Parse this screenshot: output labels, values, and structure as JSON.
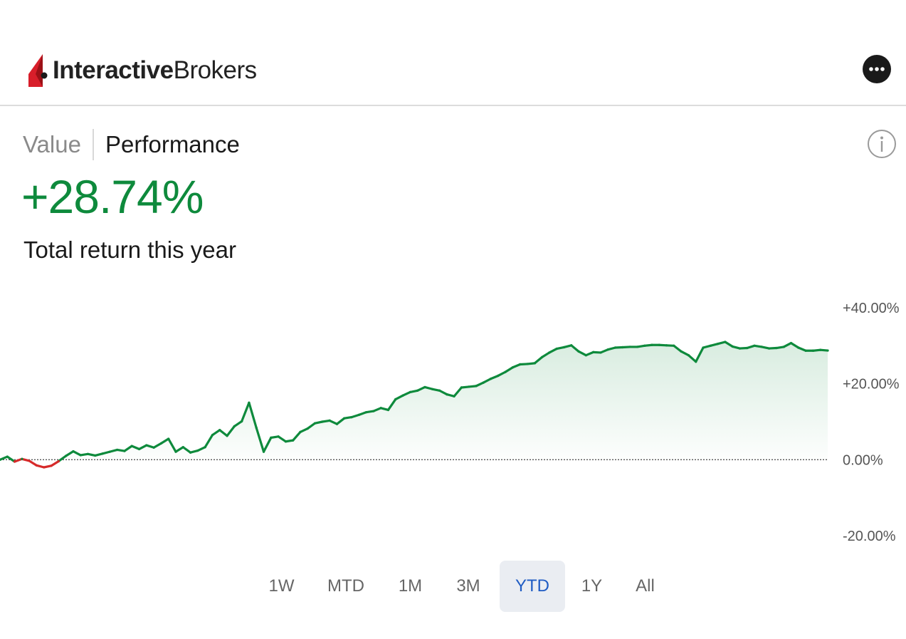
{
  "app": {
    "brand_bold": "Interactive",
    "brand_regular": "Brokers"
  },
  "header": {
    "more_icon": "more-horizontal-icon"
  },
  "tabs": [
    {
      "label": "Value",
      "active": false
    },
    {
      "label": "Performance",
      "active": true
    }
  ],
  "info_icon": "info-icon",
  "summary": {
    "value": "+28.74%",
    "label": "Total return this year"
  },
  "colors": {
    "positive": "#0e8a3c",
    "negative": "#d62a2a",
    "accent": "#1f5cc4",
    "brand": "#d81e2a"
  },
  "chart_data": {
    "type": "area",
    "x_unit": "trading day of year",
    "y_unit": "percent",
    "ylim": [
      -20,
      40
    ],
    "ytick_labels": [
      "+40.00%",
      "+20.00%",
      "0.00%",
      "-20.00%"
    ],
    "yticks": [
      40,
      20,
      0,
      -20
    ],
    "baseline": 0,
    "series": [
      {
        "values": [
          0,
          0.8,
          -0.5,
          0.2,
          -0.3,
          -1.5,
          -2,
          -1.6,
          -0.4,
          1,
          2.2,
          1.2,
          1.5,
          1.1,
          1.6,
          2.1,
          2.6,
          2.3,
          3.6,
          2.8,
          3.8,
          3.2,
          4.3,
          5.5,
          2.1,
          3.3,
          1.9,
          2.4,
          3.3,
          6.5,
          7.8,
          6.3,
          8.8,
          10.1,
          15,
          8.4,
          2.1,
          5.8,
          6.1,
          4.8,
          5.1,
          7.3,
          8.2,
          9.6,
          10,
          10.3,
          9.4,
          10.9,
          11.2,
          11.8,
          12.5,
          12.8,
          13.6,
          13.1,
          15.9,
          16.9,
          17.8,
          18.2,
          19.1,
          18.6,
          18.2,
          17.2,
          16.7,
          19,
          19.2,
          19.4,
          20.3,
          21.3,
          22.1,
          23.1,
          24.3,
          25.1,
          25.2,
          25.4,
          27,
          28.2,
          29.2,
          29.6,
          30.1,
          28.5,
          27.5,
          28.3,
          28.2,
          29,
          29.5,
          29.6,
          29.7,
          29.7,
          30,
          30.2,
          30.2,
          30.1,
          30,
          28.5,
          27.5,
          25.8,
          29.5,
          30,
          30.5,
          31,
          29.8,
          29.3,
          29.4,
          30,
          29.7,
          29.3,
          29.4,
          29.7,
          30.7,
          29.5,
          28.7,
          28.7,
          28.9,
          28.74
        ]
      }
    ]
  },
  "ranges": [
    {
      "label": "1W",
      "selected": false
    },
    {
      "label": "MTD",
      "selected": false
    },
    {
      "label": "1M",
      "selected": false
    },
    {
      "label": "3M",
      "selected": false
    },
    {
      "label": "YTD",
      "selected": true
    },
    {
      "label": "1Y",
      "selected": false
    },
    {
      "label": "All",
      "selected": false
    }
  ]
}
